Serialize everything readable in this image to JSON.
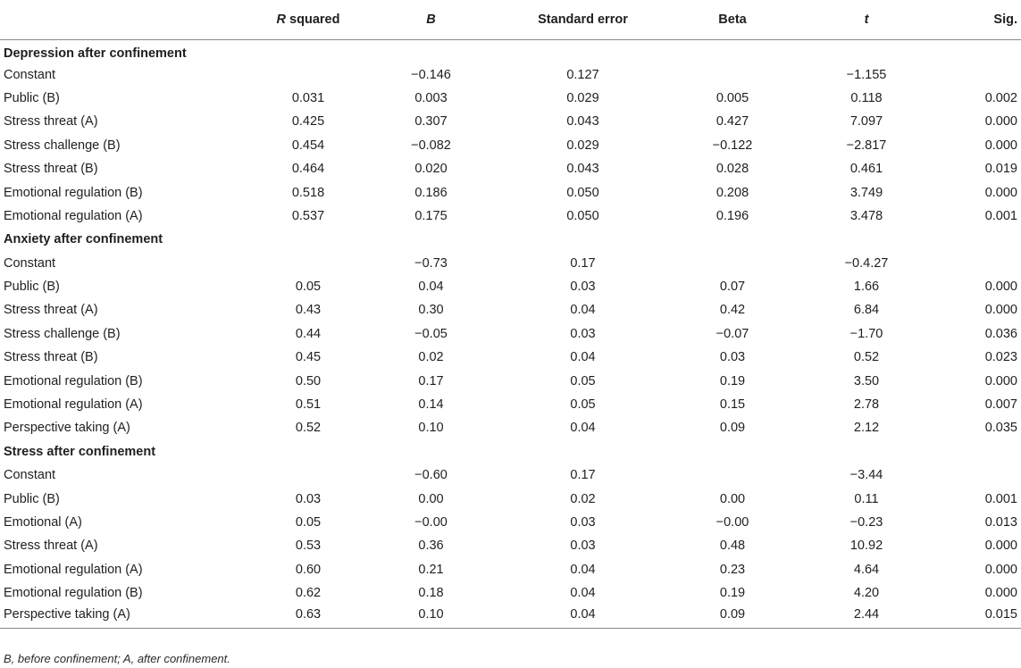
{
  "header": {
    "label": "",
    "r_squared": "R squared",
    "b": "B",
    "standard_error": "Standard error",
    "beta": "Beta",
    "t": "t",
    "sig": "Sig."
  },
  "sections": [
    {
      "title": "Depression after confinement",
      "rows": [
        {
          "label": "Constant",
          "r2": "",
          "b": "−0.146",
          "se": "0.127",
          "beta": "",
          "t": "−1.155",
          "sig": ""
        },
        {
          "label": "Public (B)",
          "r2": "0.031",
          "b": "0.003",
          "se": "0.029",
          "beta": "0.005",
          "t": "0.118",
          "sig": "0.002"
        },
        {
          "label": "Stress threat (A)",
          "r2": "0.425",
          "b": "0.307",
          "se": "0.043",
          "beta": "0.427",
          "t": "7.097",
          "sig": "0.000"
        },
        {
          "label": "Stress challenge (B)",
          "r2": "0.454",
          "b": "−0.082",
          "se": "0.029",
          "beta": "−0.122",
          "t": "−2.817",
          "sig": "0.000"
        },
        {
          "label": "Stress threat (B)",
          "r2": "0.464",
          "b": "0.020",
          "se": "0.043",
          "beta": "0.028",
          "t": "0.461",
          "sig": "0.019"
        },
        {
          "label": "Emotional regulation (B)",
          "r2": "0.518",
          "b": "0.186",
          "se": "0.050",
          "beta": "0.208",
          "t": "3.749",
          "sig": "0.000"
        },
        {
          "label": "Emotional regulation (A)",
          "r2": "0.537",
          "b": "0.175",
          "se": "0.050",
          "beta": "0.196",
          "t": "3.478",
          "sig": "0.001"
        }
      ]
    },
    {
      "title": "Anxiety after confinement",
      "rows": [
        {
          "label": "Constant",
          "r2": "",
          "b": "−0.73",
          "se": "0.17",
          "beta": "",
          "t": "−0.4.27",
          "sig": ""
        },
        {
          "label": "Public (B)",
          "r2": "0.05",
          "b": "0.04",
          "se": "0.03",
          "beta": "0.07",
          "t": "1.66",
          "sig": "0.000"
        },
        {
          "label": "Stress threat (A)",
          "r2": "0.43",
          "b": "0.30",
          "se": "0.04",
          "beta": "0.42",
          "t": "6.84",
          "sig": "0.000"
        },
        {
          "label": "Stress challenge (B)",
          "r2": "0.44",
          "b": "−0.05",
          "se": "0.03",
          "beta": "−0.07",
          "t": "−1.70",
          "sig": "0.036"
        },
        {
          "label": "Stress threat (B)",
          "r2": "0.45",
          "b": "0.02",
          "se": "0.04",
          "beta": "0.03",
          "t": "0.52",
          "sig": "0.023"
        },
        {
          "label": "Emotional regulation (B)",
          "r2": "0.50",
          "b": "0.17",
          "se": "0.05",
          "beta": "0.19",
          "t": "3.50",
          "sig": "0.000"
        },
        {
          "label": "Emotional regulation (A)",
          "r2": "0.51",
          "b": "0.14",
          "se": "0.05",
          "beta": "0.15",
          "t": "2.78",
          "sig": "0.007"
        },
        {
          "label": "Perspective taking (A)",
          "r2": "0.52",
          "b": "0.10",
          "se": "0.04",
          "beta": "0.09",
          "t": "2.12",
          "sig": "0.035"
        }
      ]
    },
    {
      "title": "Stress after confinement",
      "rows": [
        {
          "label": "Constant",
          "r2": "",
          "b": "−0.60",
          "se": "0.17",
          "beta": "",
          "t": "−3.44",
          "sig": ""
        },
        {
          "label": "Public (B)",
          "r2": "0.03",
          "b": "0.00",
          "se": "0.02",
          "beta": "0.00",
          "t": "0.11",
          "sig": "0.001"
        },
        {
          "label": "Emotional (A)",
          "r2": "0.05",
          "b": "−0.00",
          "se": "0.03",
          "beta": "−0.00",
          "t": "−0.23",
          "sig": "0.013"
        },
        {
          "label": "Stress threat (A)",
          "r2": "0.53",
          "b": "0.36",
          "se": "0.03",
          "beta": "0.48",
          "t": "10.92",
          "sig": "0.000"
        },
        {
          "label": "Emotional regulation (A)",
          "r2": "0.60",
          "b": "0.21",
          "se": "0.04",
          "beta": "0.23",
          "t": "4.64",
          "sig": "0.000"
        },
        {
          "label": "Emotional regulation (B)",
          "r2": "0.62",
          "b": "0.18",
          "se": "0.04",
          "beta": "0.19",
          "t": "4.20",
          "sig": "0.000"
        },
        {
          "label": "Perspective taking (A)",
          "r2": "0.63",
          "b": "0.10",
          "se": "0.04",
          "beta": "0.09",
          "t": "2.44",
          "sig": "0.015"
        }
      ]
    }
  ],
  "footnote": "B, before confinement; A, after confinement."
}
